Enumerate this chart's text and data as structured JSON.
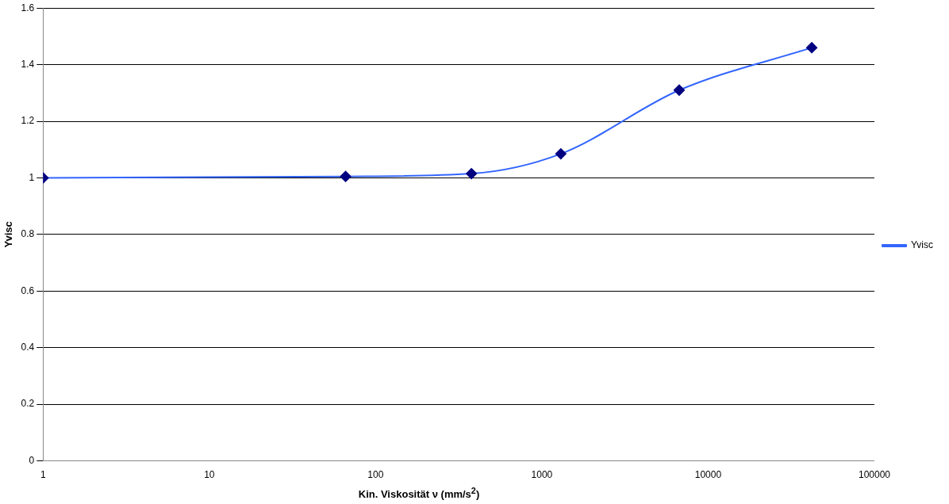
{
  "chart_data": {
    "type": "line",
    "xlabel": "Kin. Viskosität ν (mm/s$^{2}$)",
    "ylabel": "Yvisc",
    "x": [
      1,
      66,
      377,
      1300,
      6700,
      42000
    ],
    "series": [
      {
        "name": "Yvisc",
        "color": "#3366ff",
        "values": [
          1.0,
          1.005,
          1.015,
          1.085,
          1.31,
          1.46
        ]
      }
    ],
    "log": "x",
    "xlim": [
      1,
      100000
    ],
    "xticks": [
      1,
      10,
      100,
      1000,
      10000,
      100000
    ],
    "ylim": [
      0,
      1.6
    ],
    "yticks": [
      0,
      0.2,
      0.4,
      0.6,
      0.8,
      1,
      1.2,
      1.4,
      1.6
    ],
    "grid": "y",
    "legend": "right",
    "marker": "diamond",
    "line_style": "solid"
  }
}
